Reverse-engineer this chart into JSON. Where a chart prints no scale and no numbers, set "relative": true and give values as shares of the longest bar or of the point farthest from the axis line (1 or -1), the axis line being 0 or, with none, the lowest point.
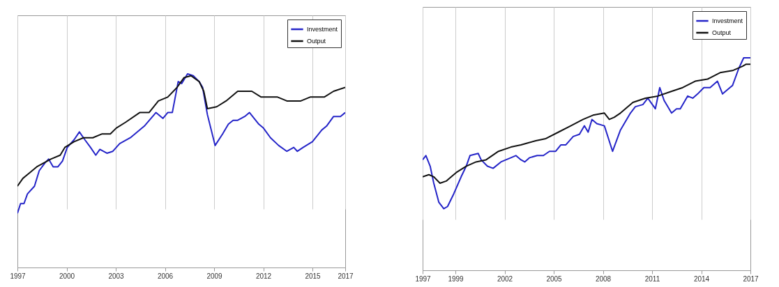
{
  "chart_data": [
    {
      "type": "line",
      "relative": true,
      "legend": "top right",
      "grid": "x",
      "xlim": [
        1997,
        2017
      ],
      "xticks": [
        1997,
        2000,
        2003,
        2006,
        2009,
        2012,
        2015,
        2017
      ],
      "series": [
        {
          "name": "Investment",
          "color": "#2424c8",
          "x": [
            1997.0,
            1997.19,
            1997.4,
            1997.61,
            1998.04,
            1998.33,
            1998.68,
            1998.9,
            1999.18,
            1999.47,
            1999.75,
            2000.04,
            2000.46,
            2000.78,
            2001.11,
            2001.46,
            2001.78,
            2002.03,
            2002.46,
            2002.82,
            2003.24,
            2003.89,
            2004.74,
            2005.45,
            2005.88,
            2006.17,
            2006.45,
            2006.81,
            2007.02,
            2007.38,
            2007.73,
            2008.09,
            2008.3,
            2008.59,
            2009.06,
            2009.52,
            2009.87,
            2010.16,
            2010.44,
            2010.87,
            2011.16,
            2011.73,
            2012.01,
            2012.44,
            2012.94,
            2013.44,
            2013.86,
            2014.08,
            2014.43,
            2015.0,
            2015.57,
            2015.86,
            2016.29,
            2016.71,
            2017.0
          ],
          "values": [
            0.28,
            0.33,
            0.33,
            0.38,
            0.42,
            0.5,
            0.54,
            0.56,
            0.52,
            0.52,
            0.55,
            0.62,
            0.66,
            0.7,
            0.66,
            0.62,
            0.58,
            0.61,
            0.59,
            0.6,
            0.64,
            0.67,
            0.73,
            0.8,
            0.77,
            0.8,
            0.8,
            0.96,
            0.95,
            1,
            0.99,
            0.96,
            0.93,
            0.79,
            0.63,
            0.69,
            0.74,
            0.76,
            0.76,
            0.78,
            0.8,
            0.74,
            0.72,
            0.67,
            0.63,
            0.6,
            0.62,
            0.6,
            0.62,
            0.65,
            0.71,
            0.73,
            0.78,
            0.78,
            0.8
          ]
        },
        {
          "name": "Output",
          "color": "#111111",
          "x": [
            1997.0,
            1997.33,
            1997.76,
            1998.18,
            1998.61,
            1999.04,
            1999.61,
            1999.89,
            2000.46,
            2001.03,
            2001.6,
            2002.17,
            2002.67,
            2003.03,
            2003.6,
            2004.46,
            2005.03,
            2005.6,
            2006.17,
            2006.74,
            2007.16,
            2007.59,
            2008.09,
            2008.37,
            2008.59,
            2009.16,
            2009.73,
            2010.44,
            2011.3,
            2011.87,
            2012.87,
            2013.44,
            2014.29,
            2014.86,
            2015.72,
            2016.29,
            2017.0
          ],
          "values": [
            0.42,
            0.46,
            0.49,
            0.52,
            0.54,
            0.56,
            0.58,
            0.62,
            0.65,
            0.67,
            0.67,
            0.69,
            0.69,
            0.72,
            0.75,
            0.8,
            0.8,
            0.86,
            0.88,
            0.93,
            0.98,
            0.99,
            0.96,
            0.91,
            0.82,
            0.83,
            0.86,
            0.91,
            0.91,
            0.88,
            0.88,
            0.86,
            0.86,
            0.88,
            0.88,
            0.91,
            0.93
          ]
        }
      ]
    },
    {
      "type": "line",
      "relative": true,
      "legend": "top right",
      "grid": "x",
      "xlim": [
        1997,
        2017
      ],
      "xticks": [
        1997,
        1999,
        2002,
        2005,
        2008,
        2011,
        2014,
        2017
      ],
      "series": [
        {
          "name": "Investment",
          "color": "#2424c8",
          "x": [
            1997.0,
            1997.2,
            1997.46,
            1997.68,
            1997.99,
            1998.29,
            1998.52,
            1998.9,
            1999.35,
            1999.66,
            1999.89,
            2000.39,
            2000.57,
            2000.95,
            2001.3,
            2001.78,
            2002.39,
            2002.69,
            2003.0,
            2003.23,
            2003.53,
            2003.99,
            2004.37,
            2004.74,
            2005.12,
            2005.43,
            2005.73,
            2006.19,
            2006.57,
            2006.87,
            2007.1,
            2007.33,
            2007.63,
            2008.09,
            2008.59,
            2009.07,
            2009.68,
            2009.98,
            2010.44,
            2010.74,
            2011.2,
            2011.47,
            2011.73,
            2012.19,
            2012.49,
            2012.72,
            2013.17,
            2013.48,
            2013.78,
            2014.16,
            2014.54,
            2014.99,
            2015.3,
            2015.75,
            2015.91,
            2016.29,
            2016.59,
            2016.82,
            2017.0
          ],
          "values": [
            0.52,
            0.54,
            0.49,
            0.41,
            0.32,
            0.29,
            0.3,
            0.36,
            0.44,
            0.49,
            0.54,
            0.55,
            0.52,
            0.49,
            0.48,
            0.51,
            0.53,
            0.54,
            0.52,
            0.51,
            0.53,
            0.54,
            0.54,
            0.56,
            0.56,
            0.59,
            0.59,
            0.63,
            0.64,
            0.68,
            0.65,
            0.71,
            0.69,
            0.68,
            0.56,
            0.66,
            0.74,
            0.77,
            0.78,
            0.81,
            0.76,
            0.86,
            0.8,
            0.74,
            0.76,
            0.76,
            0.82,
            0.81,
            0.83,
            0.86,
            0.86,
            0.89,
            0.83,
            0.86,
            0.87,
            0.95,
            1,
            1,
            1
          ]
        },
        {
          "name": "Output",
          "color": "#111111",
          "x": [
            1997.0,
            1997.38,
            1997.68,
            1998.06,
            1998.44,
            1999.05,
            1999.66,
            2000.26,
            2000.87,
            2001.63,
            2002.39,
            2003.0,
            2003.45,
            2003.91,
            2004.52,
            2005.28,
            2006.04,
            2006.79,
            2007.4,
            2008.09,
            2008.39,
            2008.69,
            2009.07,
            2009.83,
            2010.59,
            2011.35,
            2012.11,
            2012.87,
            2013.63,
            2014.39,
            2015.15,
            2015.91,
            2016.52,
            2016.74,
            2017.0
          ],
          "values": [
            0.44,
            0.45,
            0.44,
            0.41,
            0.42,
            0.46,
            0.49,
            0.51,
            0.52,
            0.56,
            0.58,
            0.59,
            0.6,
            0.61,
            0.62,
            0.65,
            0.68,
            0.71,
            0.73,
            0.74,
            0.71,
            0.72,
            0.74,
            0.79,
            0.81,
            0.82,
            0.84,
            0.86,
            0.89,
            0.9,
            0.93,
            0.94,
            0.96,
            0.97,
            0.97
          ]
        }
      ]
    }
  ]
}
